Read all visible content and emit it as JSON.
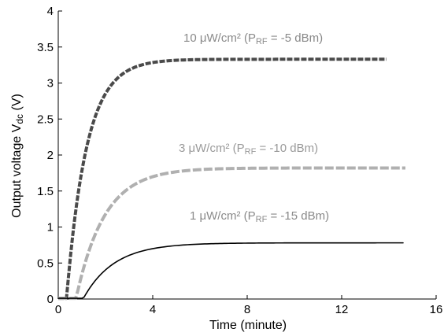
{
  "chart_data": {
    "type": "line",
    "xlabel": "Time (minute)",
    "ylabel": "Output voltage V",
    "ylabel_sub": "dc",
    "ylabel_unit": " (V)",
    "xlim": [
      0,
      16
    ],
    "ylim": [
      0,
      4
    ],
    "x_ticks": [
      0,
      4,
      8,
      12,
      16
    ],
    "y_ticks": [
      0,
      0.5,
      1,
      1.5,
      2,
      2.5,
      3,
      3.5,
      4
    ],
    "grid": false,
    "series": [
      {
        "name": "10 μW/cm² (PRF = -5 dBm)",
        "label_main": "10 μW/cm² (P",
        "label_sub": "RF",
        "label_tail": " = -5 dBm)",
        "color": "#4a4a4a",
        "style": "dotted-thick",
        "onset": 0.35,
        "final": 3.33,
        "tau": 0.85,
        "end": 13.9,
        "x": [
          0,
          0.35,
          0.6,
          1.0,
          1.5,
          2.0,
          2.5,
          3.0,
          3.5,
          4.0,
          5.0,
          6.0,
          8.0,
          10.0,
          12.0,
          13.9
        ],
        "y": [
          0.01,
          0.01,
          0.85,
          1.8,
          2.5,
          2.9,
          3.1,
          3.22,
          3.28,
          3.31,
          3.32,
          3.33,
          3.33,
          3.33,
          3.33,
          3.33
        ]
      },
      {
        "name": "3 μW/cm² (PRF = -10 dBm)",
        "label_main": "3 μW/cm² (P",
        "label_sub": "RF",
        "label_tail": " = -10 dBm)",
        "color": "#b0b0b0",
        "style": "dashed-thick",
        "onset": 0.75,
        "final": 1.82,
        "tau": 1.2,
        "end": 14.7,
        "x": [
          0,
          0.75,
          1.0,
          1.5,
          2.0,
          2.5,
          3.0,
          4.0,
          5.0,
          6.0,
          8.0,
          10.0,
          12.0,
          14.7
        ],
        "y": [
          0.01,
          0.01,
          0.35,
          0.85,
          1.18,
          1.4,
          1.55,
          1.71,
          1.77,
          1.8,
          1.82,
          1.82,
          1.82,
          1.82
        ]
      },
      {
        "name": "1 μW/cm² (PRF = -15 dBm)",
        "label_main": "1 μW/cm² (P",
        "label_sub": "RF",
        "label_tail": " = -15 dBm)",
        "color": "#000000",
        "style": "solid",
        "onset": 1.05,
        "final": 0.78,
        "tau": 1.3,
        "end": 14.6,
        "x": [
          0,
          1.05,
          1.5,
          2.0,
          2.5,
          3.0,
          4.0,
          5.0,
          6.0,
          8.0,
          10.0,
          12.0,
          14.6
        ],
        "y": [
          0.01,
          0.01,
          0.2,
          0.38,
          0.5,
          0.58,
          0.68,
          0.73,
          0.75,
          0.77,
          0.78,
          0.78,
          0.78
        ]
      }
    ]
  }
}
